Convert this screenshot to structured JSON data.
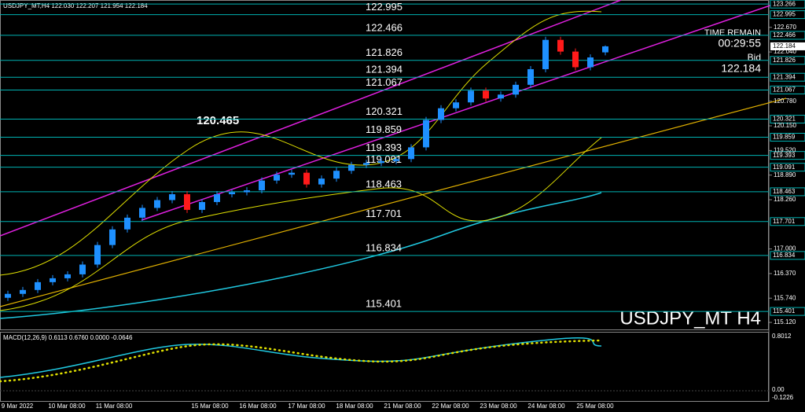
{
  "chart_data": {
    "type": "candlestick",
    "header": "USDJPY_MT,H4  122.030 122.207 121.954 122.184",
    "annotation": "120.465",
    "time_remain_label": "TIME REMAIN",
    "time_remain": "00:29:55",
    "bid_label": "Bid",
    "bid": 122.184,
    "symbol_label": "USDJPY_MT H4",
    "x_labels": [
      "9 Mar 2022",
      "10 Mar 08:00",
      "11 Mar 08:00",
      "15 Mar 08:00",
      "16 Mar 08:00",
      "17 Mar 08:00",
      "18 Mar 08:00",
      "21 Mar 08:00",
      "22 Mar 08:00",
      "23 Mar 08:00",
      "24 Mar 08:00",
      "25 Mar 08:00"
    ],
    "open": [
      115.75,
      115.85,
      115.95,
      116.15,
      116.25,
      116.35,
      116.6,
      117.1,
      117.5,
      117.8,
      118.05,
      118.25,
      118.4,
      118.0,
      118.2,
      118.4,
      118.45,
      118.5,
      118.75,
      118.9,
      118.95,
      118.65,
      118.8,
      119.0,
      119.15,
      119.2,
      119.25,
      119.3,
      119.6,
      120.3,
      120.6,
      120.75,
      121.05,
      120.85,
      120.95,
      121.2,
      121.6,
      122.35,
      122.05,
      121.65,
      122.03
    ],
    "high": [
      115.93,
      116.03,
      116.23,
      116.33,
      116.43,
      116.68,
      117.18,
      117.58,
      117.88,
      118.13,
      118.33,
      118.48,
      118.48,
      118.28,
      118.48,
      118.53,
      118.58,
      118.83,
      118.98,
      119.03,
      119.03,
      118.88,
      119.08,
      119.23,
      119.28,
      119.33,
      119.38,
      119.68,
      120.38,
      120.68,
      120.83,
      121.13,
      121.13,
      121.03,
      121.28,
      121.68,
      122.43,
      122.43,
      122.13,
      121.98,
      122.207
    ],
    "low": [
      115.67,
      115.77,
      115.87,
      116.07,
      116.17,
      116.27,
      116.52,
      117.02,
      117.42,
      117.72,
      117.97,
      118.17,
      117.92,
      117.92,
      118.12,
      118.32,
      118.37,
      118.42,
      118.67,
      118.82,
      118.57,
      118.57,
      118.72,
      118.92,
      119.07,
      119.12,
      119.17,
      119.22,
      119.52,
      120.22,
      120.52,
      120.67,
      120.77,
      120.77,
      120.87,
      121.12,
      121.52,
      121.97,
      121.57,
      121.57,
      121.954
    ],
    "close": [
      115.85,
      115.95,
      116.15,
      116.25,
      116.35,
      116.6,
      117.1,
      117.5,
      117.8,
      118.05,
      118.25,
      118.4,
      118.0,
      118.2,
      118.4,
      118.45,
      118.5,
      118.75,
      118.9,
      118.95,
      118.65,
      118.8,
      119.0,
      119.15,
      119.2,
      119.25,
      119.3,
      119.6,
      120.3,
      120.6,
      120.75,
      121.05,
      120.85,
      120.95,
      121.2,
      121.6,
      122.35,
      122.05,
      121.65,
      121.9,
      122.184
    ],
    "up_color": "#1e90ff",
    "down_color": "#ff1a1a",
    "levels": [
      123.266,
      122.995,
      122.466,
      121.826,
      121.394,
      121.067,
      120.321,
      119.859,
      119.393,
      119.091,
      118.463,
      117.701,
      116.834,
      115.401
    ],
    "level_color": "#00b3b3",
    "ylim": [
      114.92,
      123.37
    ],
    "yticks": [
      {
        "value": 122.67,
        "label": "122.670"
      },
      {
        "value": 122.04,
        "label": "122.040"
      },
      {
        "value": 120.78,
        "label": "120.780"
      },
      {
        "value": 120.15,
        "label": "120.150"
      },
      {
        "value": 119.52,
        "label": "119.520"
      },
      {
        "value": 118.89,
        "label": "118.890"
      },
      {
        "value": 118.26,
        "label": "118.260"
      },
      {
        "value": 117.0,
        "label": "117.000"
      },
      {
        "value": 116.37,
        "label": "116.370"
      },
      {
        "value": 115.74,
        "label": "115.740"
      },
      {
        "value": 115.12,
        "label": "115.120"
      }
    ],
    "macd": {
      "label": "MACD(12,26,9) 0.6113 0.6760 0.0000 -0.0646",
      "axis_labels": [
        "0.8012",
        "0.00",
        "-0.1226"
      ]
    }
  }
}
